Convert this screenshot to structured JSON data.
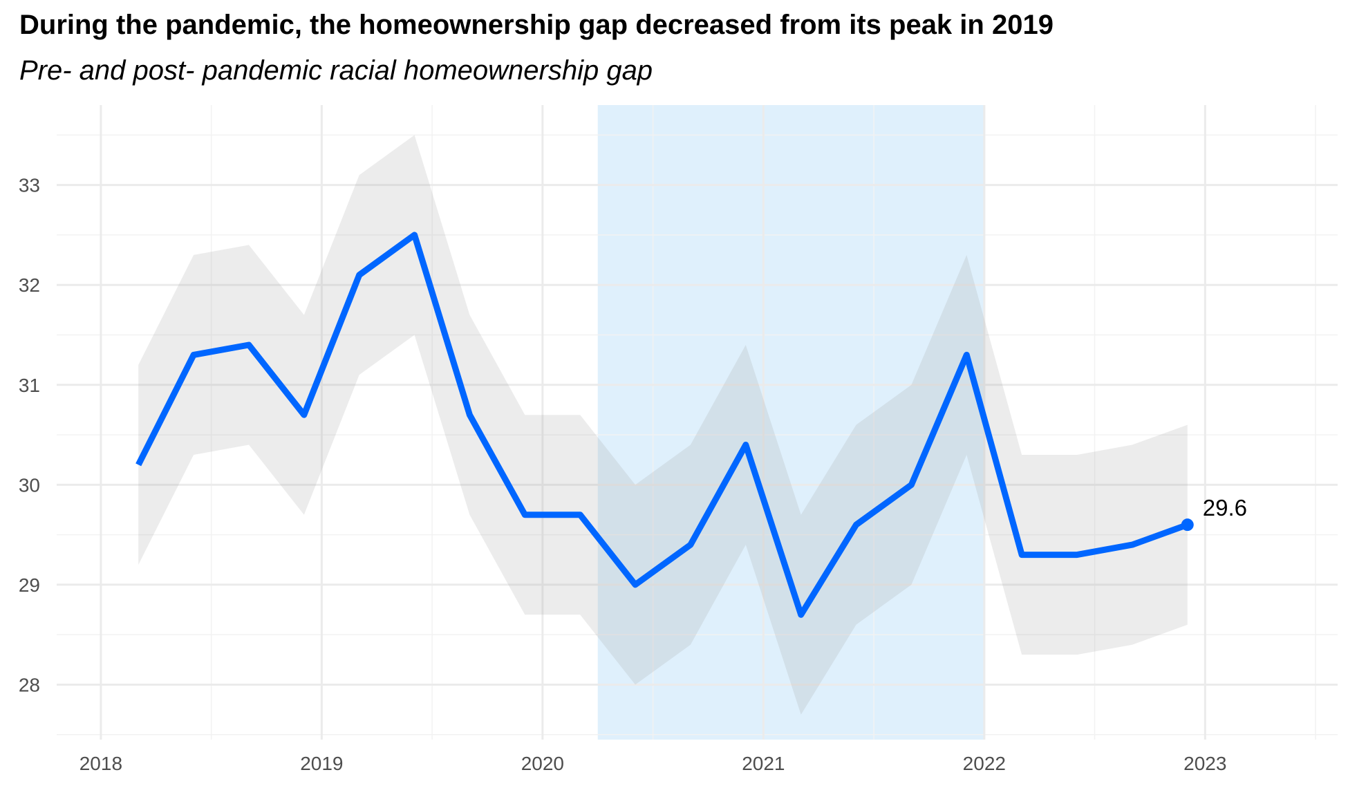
{
  "title": "During the pandemic, the homeownership gap decreased from its peak in 2019",
  "subtitle": "Pre- and post- pandemic racial homeownership gap",
  "colors": {
    "line": "#0066ff",
    "ribbon": "#e6e6e6",
    "pandemic_shading": "#dff0fc",
    "grid_major": "#ebebeb",
    "grid_minor": "#f2f2f2",
    "tick_text": "#4d4d4d"
  },
  "chart_data": {
    "type": "line",
    "title": "During the pandemic, the homeownership gap decreased from its peak in 2019",
    "subtitle": "Pre- and post- pandemic racial homeownership gap",
    "xlabel": "",
    "ylabel": "",
    "x_ticks": [
      "2018",
      "2019",
      "2020",
      "2021",
      "2022",
      "2023"
    ],
    "y_ticks": [
      28,
      29,
      30,
      31,
      32,
      33
    ],
    "xlim": [
      2017.8,
      2023.6
    ],
    "ylim": [
      27.45,
      33.8
    ],
    "grid": true,
    "shaded_period": {
      "label": "",
      "start": 2020.25,
      "end": 2022.0
    },
    "series": [
      {
        "x": [
          2018.17,
          2018.42,
          2018.67,
          2018.92,
          2019.17,
          2019.42,
          2019.67,
          2019.92,
          2020.17,
          2020.42,
          2020.67,
          2020.92,
          2021.17,
          2021.42,
          2021.67,
          2021.92,
          2022.17,
          2022.42,
          2022.67,
          2022.92
        ],
        "values": [
          30.2,
          31.3,
          31.4,
          30.7,
          32.1,
          32.5,
          30.7,
          29.7,
          29.7,
          29.0,
          29.4,
          30.4,
          28.7,
          29.6,
          30.0,
          31.3,
          29.3,
          29.3,
          29.4,
          29.6
        ],
        "lower": [
          29.2,
          30.3,
          30.4,
          29.7,
          31.1,
          31.5,
          29.7,
          28.7,
          28.7,
          28.0,
          28.4,
          29.4,
          27.7,
          28.6,
          29.0,
          30.3,
          28.3,
          28.3,
          28.4,
          28.6
        ],
        "upper": [
          31.2,
          32.3,
          32.4,
          31.7,
          33.1,
          33.5,
          31.7,
          30.7,
          30.7,
          30.0,
          30.4,
          31.4,
          29.7,
          30.6,
          31.0,
          32.3,
          30.3,
          30.3,
          30.4,
          30.6
        ]
      }
    ],
    "annotations": [
      {
        "text": "29.6",
        "x": 2022.92,
        "y": 29.6
      }
    ]
  }
}
